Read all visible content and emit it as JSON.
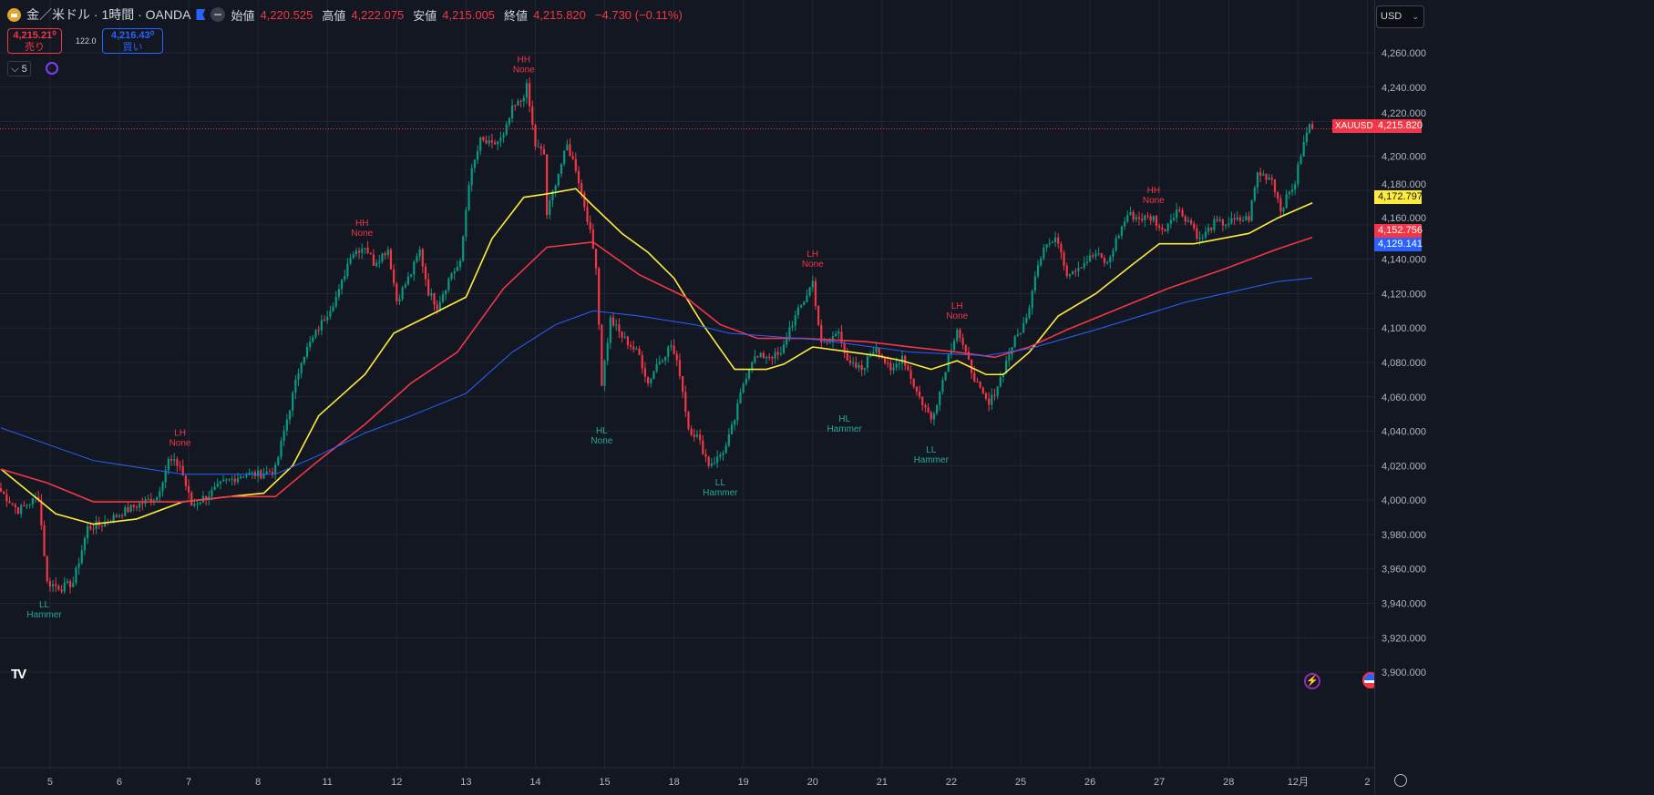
{
  "header": {
    "title": "金／米ドル · 1時間 · OANDA",
    "open_label": "始値",
    "open": "4,220.525",
    "high_label": "高値",
    "high": "4,222.075",
    "low_label": "安値",
    "low": "4,215.005",
    "close_label": "終値",
    "close": "4,215.820",
    "change": "−4.730 (−0.11%)"
  },
  "trade": {
    "sell_price": "4,215.21⁰",
    "sell_label": "売り",
    "spread": "122.0",
    "buy_price": "4,216.43⁰",
    "buy_label": "買い"
  },
  "indicator_toggle": "⌵ 5",
  "currency": "USD",
  "price_labels": {
    "symbol": "XAUUSD",
    "last": "4,215.820",
    "ma_fast": "4,172.797",
    "ma_mid": "4,152.756",
    "ma_slow": "4,129.141"
  },
  "colors": {
    "up": "#089981",
    "down": "#f23645",
    "ma_fast": "#ffeb3b",
    "ma_mid": "#f23645",
    "ma_slow": "#2962ff",
    "label_high": "#f23645",
    "label_low": "#22ab94"
  },
  "chart_data": {
    "type": "candlestick",
    "timeframe_hours": 1,
    "ylim": [
      3890,
      4275
    ],
    "yticks": [
      3900,
      3920,
      3940,
      3960,
      3980,
      4000,
      4020,
      4040,
      4060,
      4080,
      4100,
      4120,
      4140,
      4160,
      4180,
      4200,
      4220,
      4240,
      4260
    ],
    "ytick_labels": [
      "3,900.000",
      "3,920.000",
      "3,940.000",
      "3,960.000",
      "3,980.000",
      "4,000.000",
      "4,020.000",
      "4,040.000",
      "4,060.000",
      "4,080.000",
      "4,100.000",
      "4,120.000",
      "4,140.000",
      "4,160.000",
      "4,180.000",
      "4,200.000",
      "4,220.000",
      "4,240.000",
      "4,260.000"
    ],
    "xticks": [
      {
        "h": 17,
        "label": "5"
      },
      {
        "h": 41,
        "label": "6"
      },
      {
        "h": 65,
        "label": "7"
      },
      {
        "h": 89,
        "label": "8"
      },
      {
        "h": 113,
        "label": "11"
      },
      {
        "h": 137,
        "label": "12"
      },
      {
        "h": 161,
        "label": "13"
      },
      {
        "h": 185,
        "label": "14"
      },
      {
        "h": 209,
        "label": "15"
      },
      {
        "h": 233,
        "label": "18"
      },
      {
        "h": 257,
        "label": "19"
      },
      {
        "h": 281,
        "label": "20"
      },
      {
        "h": 305,
        "label": "21"
      },
      {
        "h": 329,
        "label": "22"
      },
      {
        "h": 353,
        "label": "25"
      },
      {
        "h": 377,
        "label": "26"
      },
      {
        "h": 401,
        "label": "27"
      },
      {
        "h": 425,
        "label": "28"
      },
      {
        "h": 449,
        "label": "12月"
      },
      {
        "h": 473,
        "label": "2"
      }
    ],
    "close_path": [
      [
        0,
        4005
      ],
      [
        6,
        3994
      ],
      [
        13,
        4002
      ],
      [
        16,
        3952
      ],
      [
        21,
        3949
      ],
      [
        25,
        3952
      ],
      [
        30,
        3984
      ],
      [
        35,
        3986
      ],
      [
        41,
        3992
      ],
      [
        47,
        3997
      ],
      [
        54,
        4002
      ],
      [
        58,
        4023
      ],
      [
        62,
        4020
      ],
      [
        66,
        3997
      ],
      [
        71,
        4002
      ],
      [
        77,
        4010
      ],
      [
        84,
        4015
      ],
      [
        90,
        4015
      ],
      [
        95,
        4018
      ],
      [
        99,
        4047
      ],
      [
        104,
        4082
      ],
      [
        110,
        4100
      ],
      [
        117,
        4121
      ],
      [
        121,
        4143
      ],
      [
        126,
        4148
      ],
      [
        129,
        4138
      ],
      [
        134,
        4146
      ],
      [
        137,
        4116
      ],
      [
        142,
        4132
      ],
      [
        145,
        4145
      ],
      [
        148,
        4121
      ],
      [
        151,
        4113
      ],
      [
        156,
        4132
      ],
      [
        159,
        4137
      ],
      [
        162,
        4185
      ],
      [
        166,
        4209
      ],
      [
        170,
        4206
      ],
      [
        174,
        4211
      ],
      [
        177,
        4227
      ],
      [
        180,
        4232
      ],
      [
        182,
        4240
      ],
      [
        185,
        4206
      ],
      [
        188,
        4201
      ],
      [
        189,
        4166
      ],
      [
        192,
        4185
      ],
      [
        196,
        4206
      ],
      [
        199,
        4193
      ],
      [
        203,
        4164
      ],
      [
        206,
        4137
      ],
      [
        208,
        4068
      ],
      [
        211,
        4105
      ],
      [
        215,
        4095
      ],
      [
        218,
        4090
      ],
      [
        221,
        4084
      ],
      [
        224,
        4068
      ],
      [
        227,
        4079
      ],
      [
        232,
        4090
      ],
      [
        235,
        4074
      ],
      [
        238,
        4042
      ],
      [
        241,
        4037
      ],
      [
        245,
        4021
      ],
      [
        248,
        4024
      ],
      [
        251,
        4031
      ],
      [
        254,
        4047
      ],
      [
        257,
        4068
      ],
      [
        260,
        4082
      ],
      [
        265,
        4084
      ],
      [
        270,
        4084
      ],
      [
        273,
        4100
      ],
      [
        278,
        4116
      ],
      [
        281,
        4127
      ],
      [
        284,
        4090
      ],
      [
        287,
        4092
      ],
      [
        290,
        4100
      ],
      [
        293,
        4079
      ],
      [
        298,
        4076
      ],
      [
        303,
        4090
      ],
      [
        308,
        4074
      ],
      [
        312,
        4084
      ],
      [
        317,
        4063
      ],
      [
        322,
        4047
      ],
      [
        325,
        4063
      ],
      [
        328,
        4084
      ],
      [
        331,
        4100
      ],
      [
        334,
        4084
      ],
      [
        339,
        4063
      ],
      [
        342,
        4055
      ],
      [
        346,
        4071
      ],
      [
        350,
        4090
      ],
      [
        355,
        4105
      ],
      [
        358,
        4132
      ],
      [
        361,
        4148
      ],
      [
        366,
        4151
      ],
      [
        369,
        4132
      ],
      [
        374,
        4137
      ],
      [
        379,
        4143
      ],
      [
        383,
        4137
      ],
      [
        386,
        4151
      ],
      [
        390,
        4166
      ],
      [
        394,
        4164
      ],
      [
        399,
        4164
      ],
      [
        402,
        4156
      ],
      [
        407,
        4169
      ],
      [
        412,
        4161
      ],
      [
        415,
        4151
      ],
      [
        420,
        4161
      ],
      [
        424,
        4161
      ],
      [
        432,
        4164
      ],
      [
        435,
        4190
      ],
      [
        440,
        4187
      ],
      [
        443,
        4169
      ],
      [
        448,
        4185
      ],
      [
        450,
        4201
      ],
      [
        453,
        4219
      ],
      [
        454,
        4215.82
      ]
    ],
    "series": [
      {
        "name": "MA fast",
        "color": "#ffeb3b",
        "points": [
          [
            0,
            4018
          ],
          [
            19,
            3992
          ],
          [
            32,
            3986
          ],
          [
            47,
            3989
          ],
          [
            63,
            3999
          ],
          [
            79,
            4002
          ],
          [
            91,
            4004
          ],
          [
            101,
            4020
          ],
          [
            110,
            4049
          ],
          [
            126,
            4073
          ],
          [
            136,
            4097
          ],
          [
            148,
            4107
          ],
          [
            161,
            4118
          ],
          [
            170,
            4152
          ],
          [
            181,
            4176
          ],
          [
            189,
            4178
          ],
          [
            199,
            4181
          ],
          [
            205,
            4171
          ],
          [
            215,
            4155
          ],
          [
            224,
            4144
          ],
          [
            233,
            4129
          ],
          [
            243,
            4102
          ],
          [
            254,
            4076
          ],
          [
            265,
            4076
          ],
          [
            271,
            4079
          ],
          [
            281,
            4089
          ],
          [
            290,
            4087
          ],
          [
            303,
            4084
          ],
          [
            312,
            4081
          ],
          [
            322,
            4076
          ],
          [
            331,
            4081
          ],
          [
            341,
            4073
          ],
          [
            347,
            4073
          ],
          [
            356,
            4086
          ],
          [
            366,
            4107
          ],
          [
            379,
            4120
          ],
          [
            391,
            4136
          ],
          [
            401,
            4149
          ],
          [
            413,
            4149
          ],
          [
            432,
            4155
          ],
          [
            442,
            4164
          ],
          [
            454,
            4172.797
          ]
        ]
      },
      {
        "name": "MA mid",
        "color": "#f23645",
        "points": [
          [
            0,
            4018
          ],
          [
            16,
            4010
          ],
          [
            32,
            3999
          ],
          [
            63,
            3999
          ],
          [
            79,
            4002
          ],
          [
            95,
            4002
          ],
          [
            110,
            4023
          ],
          [
            126,
            4044
          ],
          [
            142,
            4068
          ],
          [
            158,
            4086
          ],
          [
            174,
            4123
          ],
          [
            189,
            4147
          ],
          [
            205,
            4150
          ],
          [
            221,
            4131
          ],
          [
            237,
            4118
          ],
          [
            249,
            4102
          ],
          [
            262,
            4094
          ],
          [
            278,
            4094
          ],
          [
            300,
            4092
          ],
          [
            315,
            4089
          ],
          [
            331,
            4086
          ],
          [
            344,
            4083
          ],
          [
            356,
            4089
          ],
          [
            369,
            4099
          ],
          [
            385,
            4110
          ],
          [
            404,
            4123
          ],
          [
            423,
            4134
          ],
          [
            442,
            4146
          ],
          [
            454,
            4152.756
          ]
        ]
      },
      {
        "name": "MA slow",
        "color": "#2962ff",
        "points": [
          [
            0,
            4042
          ],
          [
            32,
            4023
          ],
          [
            63,
            4015
          ],
          [
            95,
            4015
          ],
          [
            110,
            4026
          ],
          [
            126,
            4039
          ],
          [
            142,
            4049
          ],
          [
            161,
            4062
          ],
          [
            177,
            4086
          ],
          [
            192,
            4102
          ],
          [
            205,
            4110
          ],
          [
            221,
            4107
          ],
          [
            240,
            4102
          ],
          [
            252,
            4097
          ],
          [
            284,
            4093
          ],
          [
            315,
            4086
          ],
          [
            341,
            4084
          ],
          [
            356,
            4088
          ],
          [
            379,
            4099
          ],
          [
            410,
            4115
          ],
          [
            442,
            4127
          ],
          [
            454,
            4129.141
          ]
        ]
      }
    ],
    "annotations": [
      {
        "h": 15,
        "price": 3944,
        "kind": "low",
        "line1": "LL",
        "line2": "Hammer"
      },
      {
        "h": 62,
        "price": 4031,
        "kind": "high",
        "line1": "LH",
        "line2": "None"
      },
      {
        "h": 125,
        "price": 4153,
        "kind": "high",
        "line1": "HH",
        "line2": "None"
      },
      {
        "h": 181,
        "price": 4248,
        "kind": "high",
        "line1": "HH",
        "line2": "None"
      },
      {
        "h": 208,
        "price": 4045,
        "kind": "low",
        "line1": "HL",
        "line2": "None"
      },
      {
        "h": 249,
        "price": 4015,
        "kind": "low",
        "line1": "LL",
        "line2": "Hammer"
      },
      {
        "h": 281,
        "price": 4135,
        "kind": "high",
        "line1": "LH",
        "line2": "None"
      },
      {
        "h": 292,
        "price": 4052,
        "kind": "low",
        "line1": "HL",
        "line2": "Hammer"
      },
      {
        "h": 322,
        "price": 4034,
        "kind": "low",
        "line1": "LL",
        "line2": "Hammer"
      },
      {
        "h": 331,
        "price": 4105,
        "kind": "high",
        "line1": "LH",
        "line2": "None"
      },
      {
        "h": 399,
        "price": 4172,
        "kind": "high",
        "line1": "HH",
        "line2": "None"
      }
    ],
    "last_price": 4215.82
  }
}
